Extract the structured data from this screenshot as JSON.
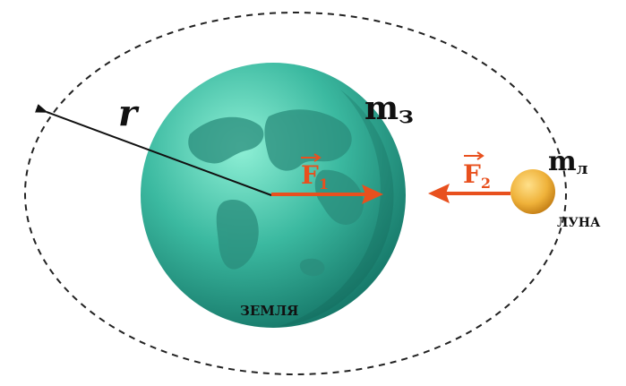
{
  "labels": {
    "radius": "r",
    "earth_mass_base": "m",
    "earth_mass_sub": "з",
    "moon_mass_base": "m",
    "moon_mass_sub": "л",
    "force1_base": "F",
    "force1_sub": "1",
    "force2_base": "F",
    "force2_sub": "2",
    "earth_name": "ЗЕМЛЯ",
    "moon_name": "ЛУНА"
  },
  "colors": {
    "earth_light": "#7fe0c8",
    "earth_mid": "#2fae98",
    "earth_dark": "#167a6a",
    "land": "#1f6f62",
    "moon_light": "#ffd97a",
    "moon_dark": "#d08a1a",
    "force": "#e8501e",
    "orbit": "#222222",
    "radius_line": "#111111",
    "text": "#111111"
  }
}
